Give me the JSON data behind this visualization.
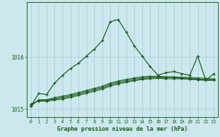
{
  "xlabel": "Graphe pression niveau de la mer (hPa)",
  "bg_color": "#cce8ee",
  "grid_color": "#aacdd6",
  "line_color": "#1a5c1a",
  "x_ticks": [
    0,
    1,
    2,
    3,
    4,
    5,
    6,
    7,
    8,
    9,
    10,
    11,
    12,
    13,
    14,
    15,
    16,
    17,
    18,
    19,
    20,
    21,
    22,
    23
  ],
  "ylim": [
    1014.85,
    1017.05
  ],
  "yticks": [
    1015.0,
    1016.0
  ],
  "series": [
    [
      1015.05,
      1015.18,
      1015.18,
      1015.22,
      1015.25,
      1015.28,
      1015.32,
      1015.36,
      1015.4,
      1015.44,
      1015.5,
      1015.54,
      1015.57,
      1015.6,
      1015.62,
      1015.63,
      1015.63,
      1015.62,
      1015.62,
      1015.61,
      1015.61,
      1015.6,
      1015.59,
      1015.58
    ],
    [
      1015.07,
      1015.17,
      1015.17,
      1015.2,
      1015.23,
      1015.26,
      1015.3,
      1015.34,
      1015.38,
      1015.42,
      1015.48,
      1015.52,
      1015.55,
      1015.58,
      1015.6,
      1015.62,
      1015.62,
      1015.61,
      1015.61,
      1015.6,
      1015.59,
      1015.58,
      1015.57,
      1015.57
    ],
    [
      1015.09,
      1015.16,
      1015.16,
      1015.19,
      1015.21,
      1015.24,
      1015.28,
      1015.32,
      1015.36,
      1015.4,
      1015.46,
      1015.5,
      1015.53,
      1015.56,
      1015.58,
      1015.6,
      1015.6,
      1015.6,
      1015.6,
      1015.59,
      1015.58,
      1015.57,
      1015.56,
      1015.56
    ],
    [
      1015.1,
      1015.15,
      1015.15,
      1015.17,
      1015.19,
      1015.22,
      1015.26,
      1015.3,
      1015.34,
      1015.38,
      1015.44,
      1015.48,
      1015.51,
      1015.54,
      1015.57,
      1015.58,
      1015.59,
      1015.58,
      1015.58,
      1015.58,
      1015.57,
      1015.56,
      1015.55,
      1015.55
    ]
  ],
  "main_series": [
    1015.05,
    1015.3,
    1015.28,
    1015.5,
    1015.65,
    1015.78,
    1015.88,
    1016.02,
    1016.15,
    1016.32,
    1016.68,
    1016.72,
    1016.48,
    1016.22,
    1016.02,
    1015.82,
    1015.65,
    1015.7,
    1015.72,
    1015.68,
    1015.65,
    1016.02,
    1015.55,
    1015.68
  ]
}
